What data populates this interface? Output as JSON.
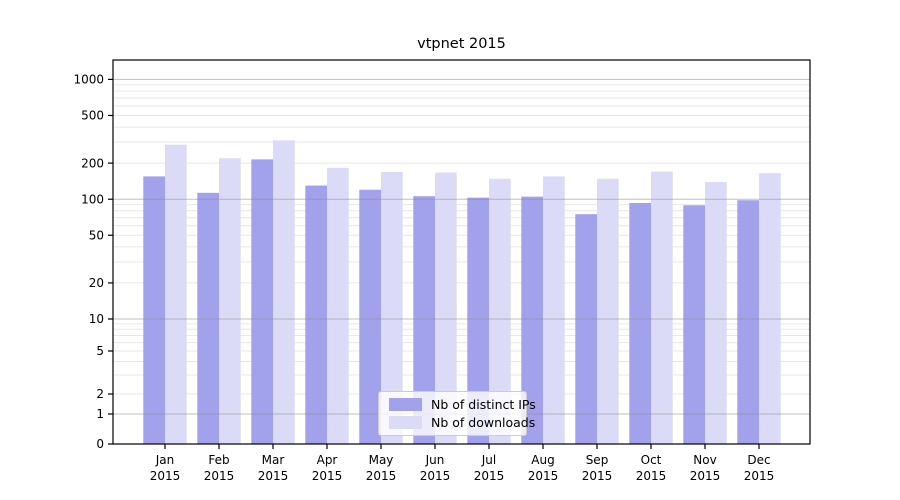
{
  "chart_data": {
    "type": "bar",
    "title": "vtpnet 2015",
    "categories": [
      "Jan 2015",
      "Feb 2015",
      "Mar 2015",
      "Apr 2015",
      "May 2015",
      "Jun 2015",
      "Jul 2015",
      "Aug 2015",
      "Sep 2015",
      "Oct 2015",
      "Nov 2015",
      "Dec 2015"
    ],
    "series": [
      {
        "name": "Nb of distinct IPs",
        "color": "#a1a1ec",
        "values": [
          155,
          113,
          215,
          130,
          120,
          106,
          103,
          105,
          75,
          93,
          89,
          98
        ]
      },
      {
        "name": "Nb of downloads",
        "color": "#dbdbf8",
        "values": [
          285,
          220,
          310,
          183,
          169,
          167,
          148,
          155,
          148,
          170,
          139,
          165
        ]
      }
    ],
    "xlabel": "",
    "ylabel": "",
    "yscale": "symlog",
    "yticks": [
      0,
      1,
      2,
      5,
      10,
      20,
      50,
      100,
      200,
      500,
      1000
    ],
    "ylim": [
      0,
      1450
    ],
    "grid": "on",
    "major_gridline_values": [
      1,
      10,
      100,
      1000
    ],
    "legend_position": "lower center",
    "colors": {
      "axis": "#000000",
      "major_grid": "#8e8e8e",
      "minor_grid": "#e7e7e7",
      "background": "#ffffff"
    }
  }
}
